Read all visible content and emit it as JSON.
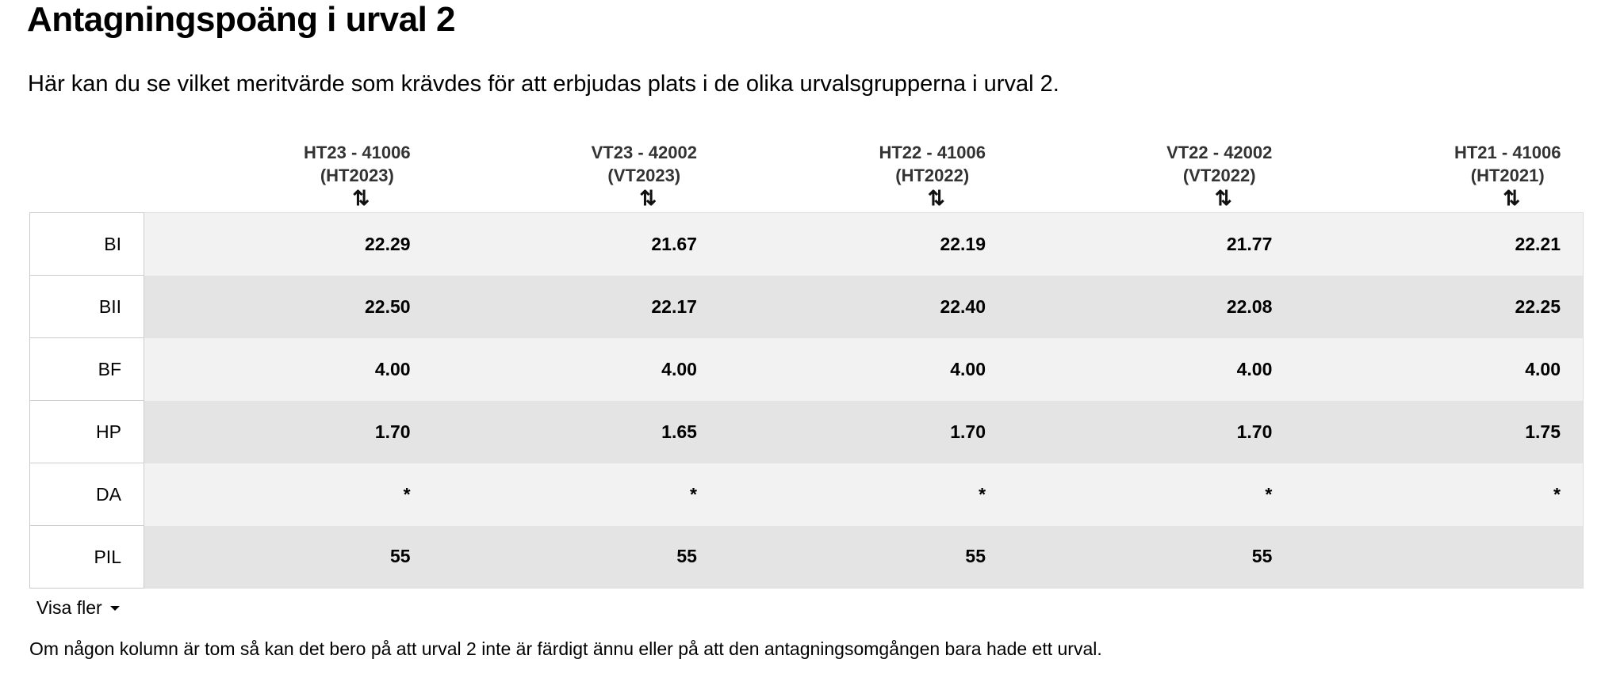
{
  "header": {
    "title": "Antagningspoäng i urval 2",
    "intro": "Här kan du se vilket meritvärde som krävdes för att erbjudas plats i de olika urvalsgrupperna i urval 2."
  },
  "table": {
    "columns": [
      {
        "code": "HT23 - 41006",
        "term": "(HT2023)"
      },
      {
        "code": "VT23 - 42002",
        "term": "(VT2023)"
      },
      {
        "code": "HT22 - 41006",
        "term": "(HT2022)"
      },
      {
        "code": "VT22 - 42002",
        "term": "(VT2022)"
      },
      {
        "code": "HT21 - 41006",
        "term": "(HT2021)"
      }
    ],
    "rows": [
      {
        "label": "BI",
        "values": [
          "22.29",
          "21.67",
          "22.19",
          "21.77",
          "22.21"
        ]
      },
      {
        "label": "BII",
        "values": [
          "22.50",
          "22.17",
          "22.40",
          "22.08",
          "22.25"
        ]
      },
      {
        "label": "BF",
        "values": [
          "4.00",
          "4.00",
          "4.00",
          "4.00",
          "4.00"
        ]
      },
      {
        "label": "HP",
        "values": [
          "1.70",
          "1.65",
          "1.70",
          "1.70",
          "1.75"
        ]
      },
      {
        "label": "DA",
        "values": [
          "*",
          "*",
          "*",
          "*",
          "*"
        ]
      },
      {
        "label": "PIL",
        "values": [
          "55",
          "55",
          "55",
          "55",
          null
        ]
      }
    ]
  },
  "show_more": "Visa fler",
  "footnote": "Om någon kolumn är tom så kan det bero på att urval 2 inte är färdigt ännu eller på att den antagningsomgången bara hade ett urval."
}
